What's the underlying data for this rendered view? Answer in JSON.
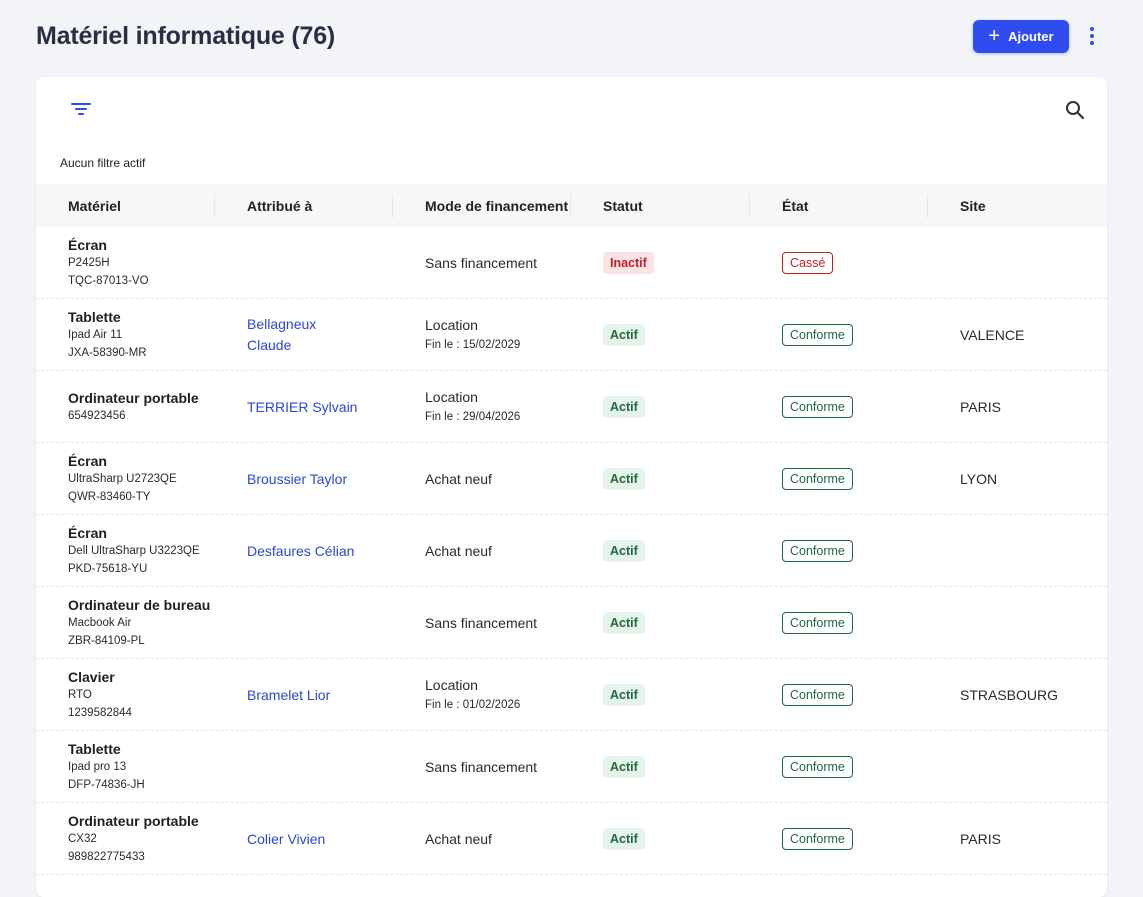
{
  "header": {
    "title": "Matériel informatique (76)",
    "add_label": "Ajouter",
    "add_icon": "plus-icon",
    "more_icon": "more-vertical-icon"
  },
  "toolbar": {
    "filter_icon": "filter-icon",
    "search_icon": "search-icon",
    "filter_status": "Aucun filtre actif"
  },
  "table": {
    "columns": [
      "Matériel",
      "Attribué à",
      "Mode de financement",
      "Statut",
      "État",
      "Site"
    ],
    "rows": [
      {
        "name": "Écran",
        "model": "P2425H",
        "serial": "TQC-87013-VO",
        "assignee": "",
        "financing": "Sans financement",
        "financing_detail": "",
        "status": "Inactif",
        "condition": "Cassé",
        "site": ""
      },
      {
        "name": "Tablette",
        "model": "Ipad Air 11",
        "serial": "JXA-58390-MR",
        "assignee": "Bellagneux Claude",
        "financing": "Location",
        "financing_detail": "Fin le : 15/02/2029",
        "status": "Actif",
        "condition": "Conforme",
        "site": "VALENCE"
      },
      {
        "name": "Ordinateur portable",
        "model": "654923456",
        "serial": "",
        "assignee": "TERRIER Sylvain",
        "financing": "Location",
        "financing_detail": "Fin le : 29/04/2026",
        "status": "Actif",
        "condition": "Conforme",
        "site": "PARIS"
      },
      {
        "name": "Écran",
        "model": "UltraSharp U2723QE",
        "serial": "QWR-83460-TY",
        "assignee": "Broussier Taylor",
        "financing": "Achat neuf",
        "financing_detail": "",
        "status": "Actif",
        "condition": "Conforme",
        "site": "LYON"
      },
      {
        "name": "Écran",
        "model": "Dell UltraSharp U3223QE",
        "serial": "PKD-75618-YU",
        "assignee": "Desfaures Célian",
        "financing": "Achat neuf",
        "financing_detail": "",
        "status": "Actif",
        "condition": "Conforme",
        "site": ""
      },
      {
        "name": "Ordinateur de bureau",
        "model": "Macbook Air",
        "serial": "ZBR-84109-PL",
        "assignee": "",
        "financing": "Sans financement",
        "financing_detail": "",
        "status": "Actif",
        "condition": "Conforme",
        "site": ""
      },
      {
        "name": "Clavier",
        "model": "RTO",
        "serial": "1239582844",
        "assignee": "Bramelet Lior",
        "financing": "Location",
        "financing_detail": "Fin le : 01/02/2026",
        "status": "Actif",
        "condition": "Conforme",
        "site": "STRASBOURG"
      },
      {
        "name": "Tablette",
        "model": "Ipad pro 13",
        "serial": "DFP-74836-JH",
        "assignee": "",
        "financing": "Sans financement",
        "financing_detail": "",
        "status": "Actif",
        "condition": "Conforme",
        "site": ""
      },
      {
        "name": "Ordinateur portable",
        "model": "CX32",
        "serial": "989822775433",
        "assignee": "Colier Vivien",
        "financing": "Achat neuf",
        "financing_detail": "",
        "status": "Actif",
        "condition": "Conforme",
        "site": "PARIS"
      }
    ]
  },
  "colors": {
    "accent": "#2e4cf0",
    "link": "#2b46d6",
    "active": "#1c6b3d",
    "inactive": "#c0202a"
  }
}
